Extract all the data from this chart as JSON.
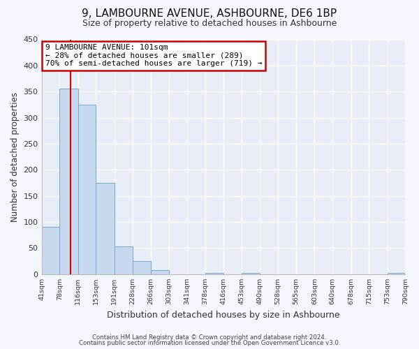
{
  "title": "9, LAMBOURNE AVENUE, ASHBOURNE, DE6 1BP",
  "subtitle": "Size of property relative to detached houses in Ashbourne",
  "xlabel": "Distribution of detached houses by size in Ashbourne",
  "ylabel": "Number of detached properties",
  "bar_edges": [
    41,
    78,
    116,
    153,
    191,
    228,
    266,
    303,
    341,
    378,
    416,
    453,
    490,
    528,
    565,
    603,
    640,
    678,
    715,
    753,
    790
  ],
  "bar_heights": [
    91,
    355,
    325,
    175,
    53,
    25,
    8,
    0,
    0,
    3,
    0,
    3,
    0,
    0,
    0,
    0,
    0,
    0,
    0,
    3
  ],
  "bar_color": "#c8d9ef",
  "bar_edge_color": "#6aaad4",
  "property_line_x": 101,
  "property_line_color": "#dd0000",
  "ylim": [
    0,
    450
  ],
  "yticks": [
    0,
    50,
    100,
    150,
    200,
    250,
    300,
    350,
    400,
    450
  ],
  "annotation_title": "9 LAMBOURNE AVENUE: 101sqm",
  "annotation_line1": "← 28% of detached houses are smaller (289)",
  "annotation_line2": "70% of semi-detached houses are larger (719) →",
  "annotation_box_color": "#ffffff",
  "annotation_box_edge": "#cc0000",
  "footer_line1": "Contains HM Land Registry data © Crown copyright and database right 2024.",
  "footer_line2": "Contains public sector information licensed under the Open Government Licence v3.0.",
  "bg_color": "#f5f7ff",
  "plot_bg_color": "#e8edf8",
  "grid_color": "#ffffff",
  "title_fontsize": 11,
  "subtitle_fontsize": 9
}
